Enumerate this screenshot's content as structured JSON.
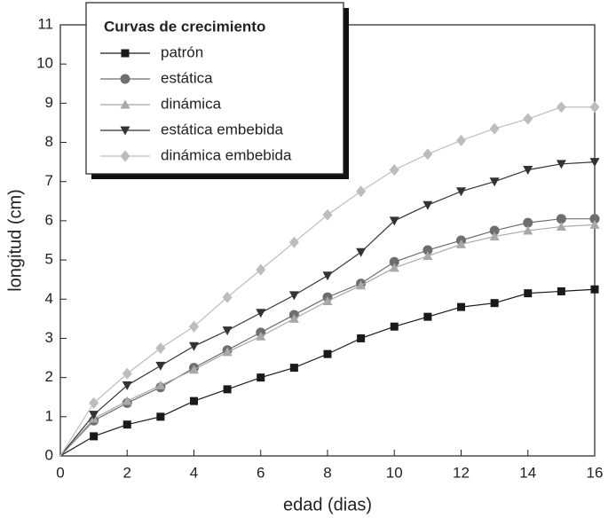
{
  "chart_data": {
    "type": "line",
    "x_label": "edad (dias)",
    "y_label": "longitud (cm)",
    "legend_title": "Curvas de crecimiento",
    "legend_position": "upper left",
    "x": [
      0,
      1,
      2,
      3,
      4,
      5,
      6,
      7,
      8,
      9,
      10,
      11,
      12,
      13,
      14,
      15,
      16
    ],
    "xlim": [
      0,
      16
    ],
    "xticks": [
      0,
      2,
      4,
      6,
      8,
      10,
      12,
      14,
      16
    ],
    "ylim": [
      0,
      11
    ],
    "yticks": [
      0,
      1,
      2,
      3,
      4,
      5,
      6,
      7,
      8,
      9,
      10,
      11
    ],
    "grid": false,
    "series": [
      {
        "name": "patrón",
        "color": "#1a1a1a",
        "marker": "square",
        "values": [
          0,
          0.5,
          0.8,
          1.0,
          1.4,
          1.7,
          2.0,
          2.25,
          2.6,
          3.0,
          3.3,
          3.55,
          3.8,
          3.9,
          4.15,
          4.2,
          4.25
        ]
      },
      {
        "name": "estática",
        "color": "#6e6e6e",
        "marker": "circle",
        "values": [
          0,
          0.9,
          1.35,
          1.75,
          2.25,
          2.7,
          3.15,
          3.6,
          4.05,
          4.4,
          4.95,
          5.25,
          5.5,
          5.75,
          5.95,
          6.05,
          6.05
        ]
      },
      {
        "name": "dinámica",
        "color": "#a8a8a8",
        "marker": "triangle-up",
        "values": [
          0,
          0.95,
          1.4,
          1.8,
          2.2,
          2.65,
          3.05,
          3.5,
          3.95,
          4.35,
          4.8,
          5.1,
          5.4,
          5.6,
          5.75,
          5.85,
          5.9
        ]
      },
      {
        "name": "estática embebida",
        "color": "#333333",
        "marker": "triangle-down",
        "values": [
          0,
          1.05,
          1.8,
          2.3,
          2.8,
          3.2,
          3.65,
          4.1,
          4.6,
          5.2,
          6.0,
          6.4,
          6.75,
          7.0,
          7.3,
          7.45,
          7.5
        ]
      },
      {
        "name": "dinámica embebida",
        "color": "#bdbdbd",
        "marker": "diamond",
        "values": [
          0,
          1.35,
          2.1,
          2.75,
          3.3,
          4.05,
          4.75,
          5.45,
          6.15,
          6.75,
          7.3,
          7.7,
          8.05,
          8.35,
          8.6,
          8.9,
          8.9
        ]
      }
    ]
  }
}
